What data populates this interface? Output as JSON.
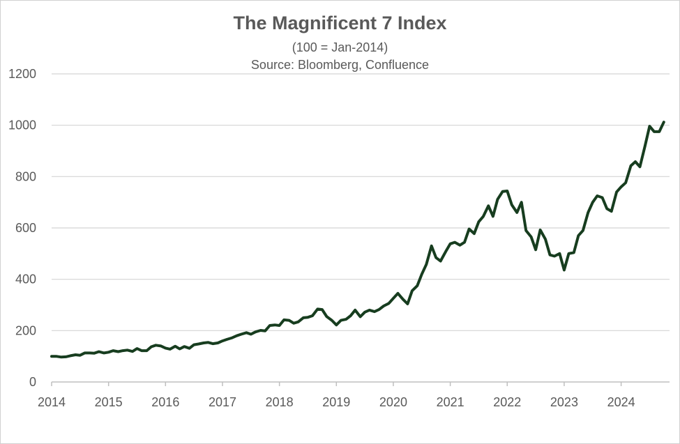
{
  "chart_data": {
    "type": "line",
    "title": "The Magnificent 7 Index",
    "subtitle": "(100 = Jan-2014)",
    "source": "Source: Bloomberg, Confluence",
    "xlabel": "",
    "ylabel": "",
    "xlim": [
      2014,
      2024.85
    ],
    "ylim": [
      0,
      1200
    ],
    "y_ticks": [
      "0",
      "200",
      "400",
      "600",
      "800",
      "1000",
      "1200"
    ],
    "x_ticks": [
      "2014",
      "2015",
      "2016",
      "2017",
      "2018",
      "2019",
      "2020",
      "2021",
      "2022",
      "2023",
      "2024"
    ],
    "grid": true,
    "legend": "none",
    "line_color": "#173d1f",
    "series": [
      {
        "x": [
          2014.0,
          2014.08,
          2014.17,
          2014.25,
          2014.33,
          2014.42,
          2014.5,
          2014.58,
          2014.67,
          2014.75,
          2014.83,
          2014.92,
          2015.0,
          2015.08,
          2015.17,
          2015.25,
          2015.33,
          2015.42,
          2015.5,
          2015.58,
          2015.67,
          2015.75,
          2015.83,
          2015.92,
          2016.0,
          2016.08,
          2016.17,
          2016.25,
          2016.33,
          2016.42,
          2016.5,
          2016.58,
          2016.67,
          2016.75,
          2016.83,
          2016.92,
          2017.0,
          2017.08,
          2017.17,
          2017.25,
          2017.33,
          2017.42,
          2017.5,
          2017.58,
          2017.67,
          2017.75,
          2017.83,
          2017.92,
          2018.0,
          2018.08,
          2018.17,
          2018.25,
          2018.33,
          2018.42,
          2018.5,
          2018.58,
          2018.67,
          2018.75,
          2018.83,
          2018.92,
          2019.0,
          2019.08,
          2019.17,
          2019.25,
          2019.33,
          2019.42,
          2019.5,
          2019.58,
          2019.67,
          2019.75,
          2019.83,
          2019.92,
          2020.0,
          2020.08,
          2020.17,
          2020.25,
          2020.33,
          2020.42,
          2020.5,
          2020.58,
          2020.67,
          2020.75,
          2020.83,
          2020.92,
          2021.0,
          2021.08,
          2021.17,
          2021.25,
          2021.33,
          2021.42,
          2021.5,
          2021.58,
          2021.67,
          2021.75,
          2021.83,
          2021.92,
          2022.0,
          2022.08,
          2022.17,
          2022.25,
          2022.33,
          2022.42,
          2022.5,
          2022.58,
          2022.67,
          2022.75,
          2022.83,
          2022.92,
          2023.0,
          2023.08,
          2023.17,
          2023.25,
          2023.33,
          2023.42,
          2023.5,
          2023.58,
          2023.67,
          2023.75,
          2023.83,
          2023.92,
          2024.0,
          2024.08,
          2024.17,
          2024.25,
          2024.33,
          2024.42,
          2024.5,
          2024.58,
          2024.67,
          2024.75
        ],
        "y": [
          100,
          100,
          97,
          98,
          102,
          106,
          104,
          113,
          113,
          112,
          118,
          113,
          116,
          122,
          118,
          122,
          124,
          119,
          130,
          122,
          122,
          137,
          143,
          140,
          132,
          128,
          139,
          129,
          138,
          131,
          145,
          148,
          152,
          154,
          149,
          152,
          160,
          166,
          172,
          180,
          186,
          192,
          186,
          195,
          201,
          199,
          220,
          222,
          220,
          242,
          240,
          229,
          234,
          250,
          252,
          258,
          284,
          282,
          255,
          240,
          222,
          240,
          244,
          258,
          280,
          254,
          272,
          280,
          274,
          282,
          296,
          306,
          326,
          345,
          322,
          304,
          355,
          375,
          420,
          458,
          530,
          484,
          471,
          508,
          538,
          544,
          533,
          544,
          596,
          578,
          624,
          645,
          686,
          645,
          711,
          742,
          744,
          690,
          660,
          700,
          590,
          565,
          515,
          592,
          556,
          495,
          490,
          500,
          436,
          500,
          504,
          570,
          590,
          660,
          700,
          725,
          718,
          675,
          665,
          740,
          760,
          776,
          842,
          858,
          838,
          920,
          996,
          975,
          975,
          1012
        ]
      }
    ]
  }
}
